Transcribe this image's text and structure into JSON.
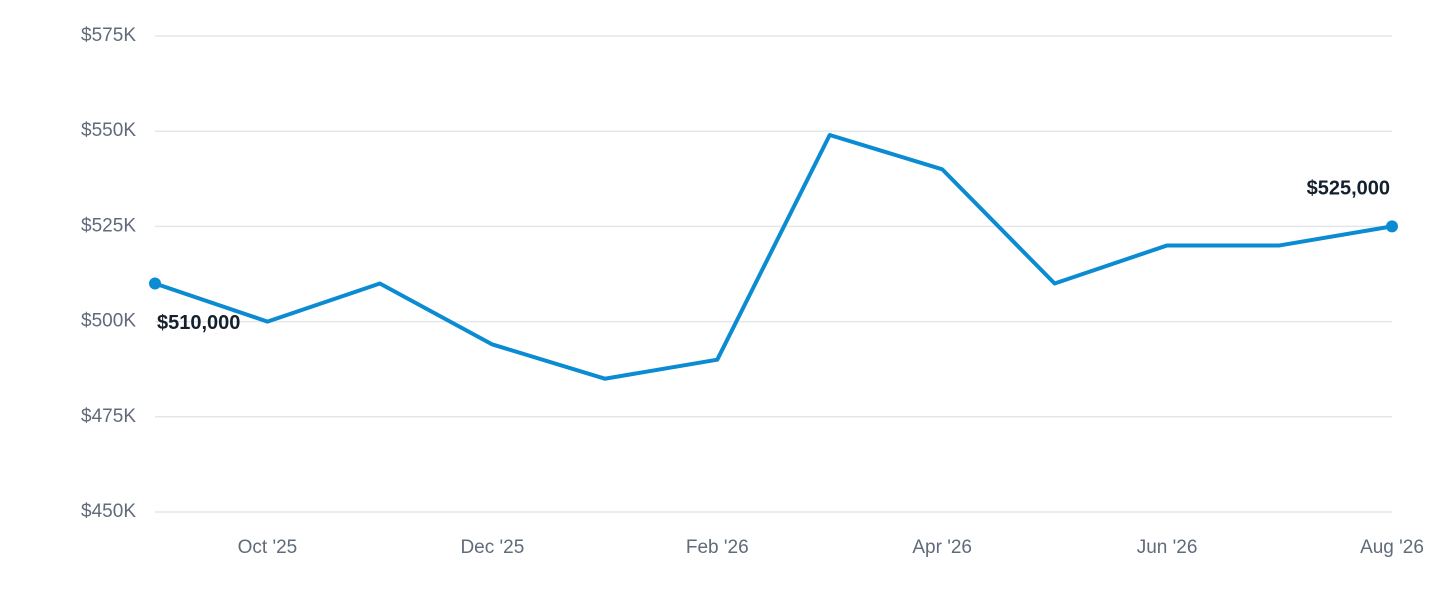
{
  "chart_data": {
    "type": "line",
    "categories": [
      null,
      "Oct '25",
      null,
      "Dec '25",
      null,
      "Feb '26",
      null,
      "Apr '26",
      null,
      "Jun '26",
      null,
      "Aug '26"
    ],
    "series": [
      {
        "color": "#0b8bd1",
        "values": [
          510000,
          500000,
          510000,
          494000,
          485000,
          490000,
          549000,
          540000,
          510000,
          520000,
          520000,
          525000
        ],
        "value_labels": [
          "$510,000",
          null,
          null,
          null,
          null,
          null,
          null,
          null,
          null,
          null,
          null,
          "$525,000"
        ]
      }
    ],
    "ylim": [
      450000,
      575000
    ],
    "yticks": [
      {
        "value": 450000,
        "label": "$450K"
      },
      {
        "value": 475000,
        "label": "$475K"
      },
      {
        "value": 500000,
        "label": "$500K"
      },
      {
        "value": 525000,
        "label": "$525K"
      },
      {
        "value": 550000,
        "label": "$550K"
      },
      {
        "value": 575000,
        "label": "$575K"
      }
    ],
    "grid": true
  }
}
